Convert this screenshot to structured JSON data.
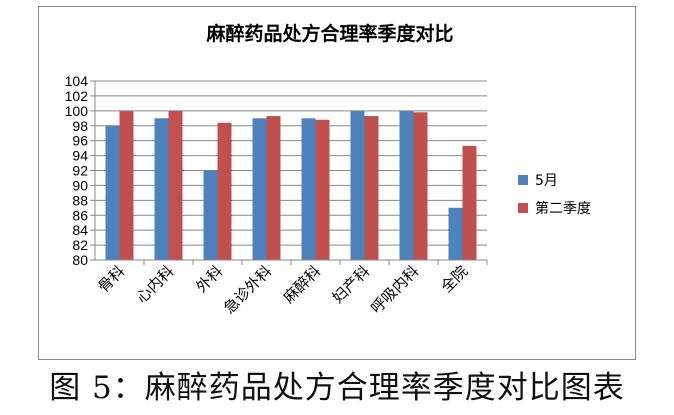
{
  "chart_data": {
    "type": "bar",
    "title": "麻醉药品处方合理率季度对比",
    "categories": [
      "骨科",
      "心内科",
      "外科",
      "急诊外科",
      "麻醉科",
      "妇产科",
      "呼吸内科",
      "全院"
    ],
    "series": [
      {
        "name": "5月",
        "color": "#4f81bd",
        "values": [
          98,
          99,
          92,
          99,
          99,
          100,
          100,
          87
        ]
      },
      {
        "name": "第二季度",
        "color": "#c0504d",
        "values": [
          100,
          100,
          98.4,
          99.3,
          98.8,
          99.3,
          99.8,
          95.3
        ]
      }
    ],
    "ylim": [
      80,
      104
    ],
    "yticks": [
      "80",
      "82",
      "84",
      "86",
      "88",
      "90",
      "92",
      "94",
      "96",
      "98",
      "100",
      "102",
      "104"
    ],
    "grid": true,
    "legend_position": "right"
  },
  "caption": "图 5：麻醉药品处方合理率季度对比图表"
}
